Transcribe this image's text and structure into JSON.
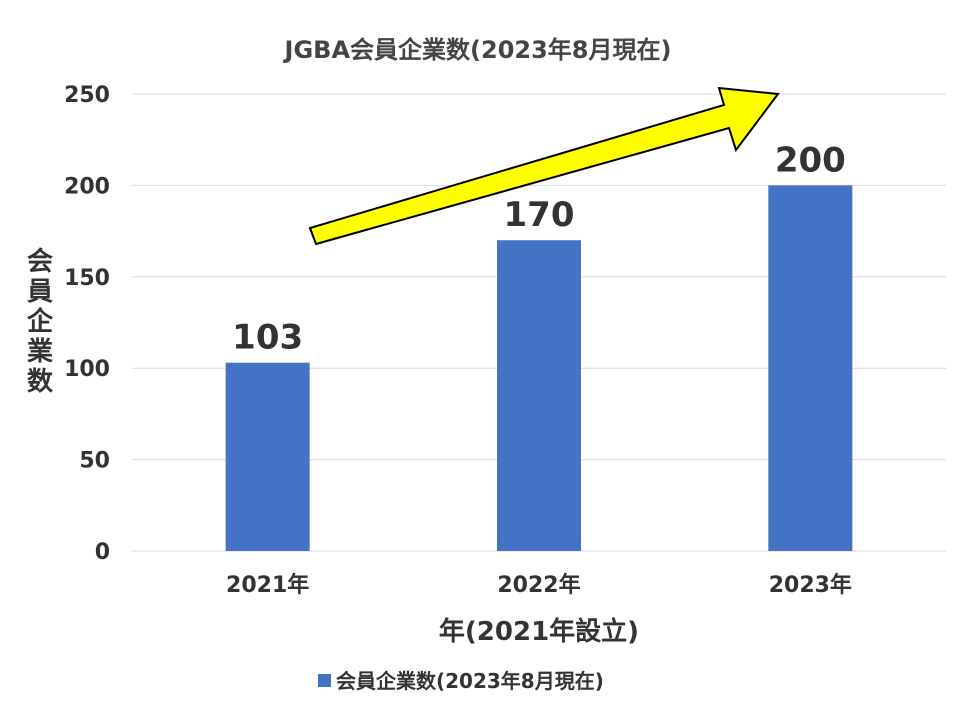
{
  "chart_data": {
    "type": "bar",
    "title": "JGBA会員企業数(2023年8月現在)",
    "xlabel": "年(2021年設立)",
    "ylabel": "会員企業数",
    "categories": [
      "2021年",
      "2022年",
      "2023年"
    ],
    "series": [
      {
        "name": "会員企業数(2023年8月現在)",
        "values": [
          103,
          170,
          200
        ],
        "color": "#4472C4"
      }
    ],
    "data_labels": [
      "103",
      "170",
      "200"
    ],
    "ylim": [
      0,
      250
    ],
    "yticks": [
      0,
      50,
      100,
      150,
      200,
      250
    ],
    "ytick_labels": [
      "0",
      "50",
      "100",
      "150",
      "200",
      "250"
    ],
    "grid": true,
    "legend_position": "bottom",
    "annotations": [
      {
        "type": "arrow",
        "color": "#FFFF00",
        "stroke": "#000000",
        "direction": "up-right"
      }
    ]
  }
}
